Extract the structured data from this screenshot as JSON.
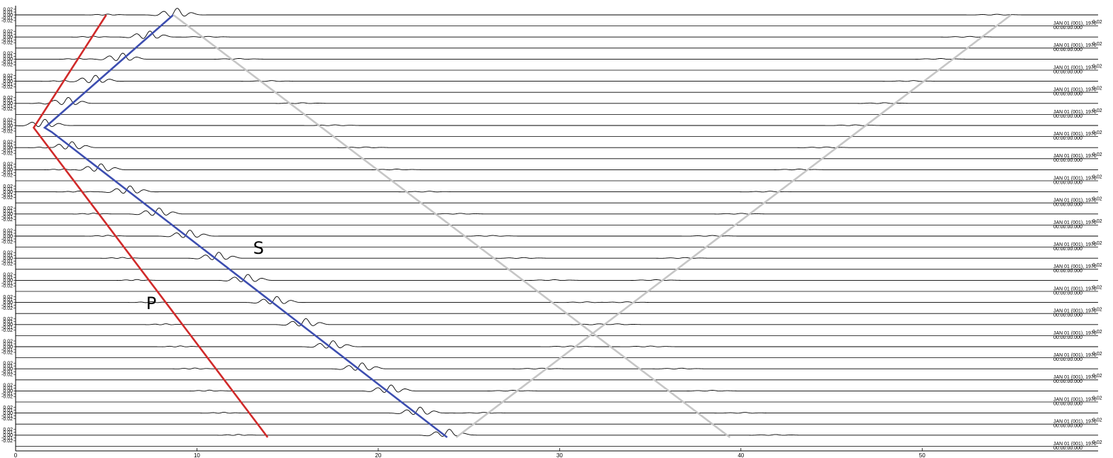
{
  "chart_data": {
    "type": "line",
    "title": "",
    "xlabel": "",
    "ylabel": "",
    "xlim": [
      0,
      59.7
    ],
    "x_ticks": [
      0,
      10,
      20,
      30,
      40,
      50
    ],
    "trace_count": 20,
    "trace_amplitude_ticks": [
      "0.02",
      "0.01",
      "0.00",
      "-0.01",
      "-0.02"
    ],
    "trace_timestamp": [
      "JAN 01 (001), 1970",
      "00:00:00.000"
    ],
    "right_edge_tick": "0.02",
    "phase_labels": [
      {
        "text": "P",
        "x": 7.2,
        "trace": 13.3
      },
      {
        "text": "S",
        "x": 13.1,
        "trace": 10.8
      }
    ],
    "p_arrivals": [
      5.0,
      4.2,
      3.4,
      2.6,
      1.8,
      1.0,
      1.8,
      2.6,
      3.4,
      4.2,
      5.0,
      5.8,
      6.6,
      7.4,
      8.2,
      9.0,
      9.8,
      10.6,
      11.4,
      12.2
    ],
    "s_arrivals": [
      8.8,
      7.3,
      5.8,
      4.3,
      2.8,
      1.5,
      3.0,
      4.6,
      6.2,
      7.8,
      9.5,
      11.1,
      12.7,
      14.3,
      15.9,
      17.4,
      19.0,
      20.6,
      22.2,
      23.8
    ],
    "reflection_down": [
      8.8,
      10.5,
      12.2,
      14.0,
      15.7,
      17.5,
      19.2,
      20.9,
      22.7,
      24.4,
      26.2,
      27.9,
      29.6,
      31.4,
      33.1,
      34.9,
      36.6,
      38.3,
      40.1,
      41.8
    ],
    "reflection_up": [
      54.0,
      52.5,
      50.9,
      49.4,
      47.8,
      46.2,
      44.6,
      43.1,
      41.5,
      39.9,
      38.3,
      36.8,
      35.2,
      33.6,
      32.0,
      30.5,
      28.9,
      27.3,
      25.7,
      24.1
    ],
    "series": [
      {
        "name": "P",
        "color": "#d02a2a",
        "x": [
          5.0,
          1.0,
          13.9
        ],
        "trace": [
          0,
          5.1,
          19.1
        ]
      },
      {
        "name": "S",
        "color": "#3d4eb0",
        "x": [
          8.7,
          1.6,
          2.0,
          23.8
        ],
        "trace": [
          0,
          5.1,
          5.3,
          19.1
        ]
      },
      {
        "name": "",
        "color": "#c6c6c6",
        "x": [
          8.7,
          39.4
        ],
        "trace": [
          0,
          19.1
        ]
      },
      {
        "name": "",
        "color": "#c6c6c6",
        "x": [
          54.9,
          24.3
        ],
        "trace": [
          0,
          19.1
        ]
      }
    ]
  }
}
